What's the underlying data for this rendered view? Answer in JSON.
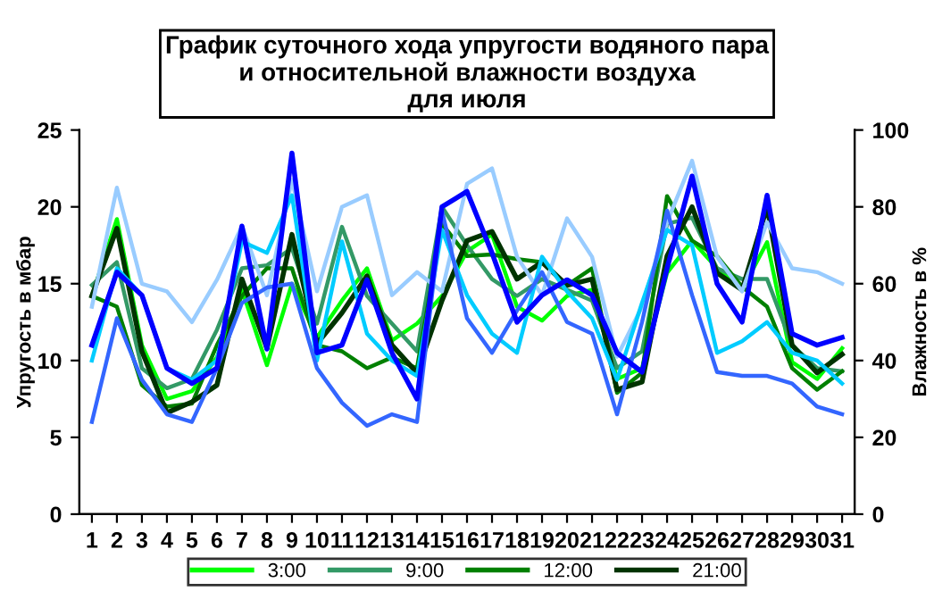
{
  "chart_data": {
    "type": "line",
    "title": "График суточного хода упругости водяного пара\nи относительной влажности воздуха\nдля июля",
    "ylabel": "Упругость в мбар",
    "y2label": "Влажность в %",
    "categories": [
      "1",
      "2",
      "3",
      "4",
      "5",
      "6",
      "7",
      "8",
      "9",
      "10",
      "11",
      "12",
      "13",
      "14",
      "15",
      "16",
      "17",
      "18",
      "19",
      "20",
      "21",
      "22",
      "23",
      "24",
      "25",
      "26",
      "27",
      "28",
      "29",
      "30",
      "31"
    ],
    "ylim": [
      0,
      25
    ],
    "yticks": [
      0,
      5,
      10,
      15,
      20,
      25
    ],
    "y2lim": [
      0,
      100
    ],
    "y2ticks": [
      0,
      20,
      40,
      60,
      80,
      100
    ],
    "grid": false,
    "legend": "bottom",
    "marker": "none",
    "line_style": "solid",
    "series": [
      {
        "name": "3:00",
        "color": "#00ff00",
        "values": [
          14.2,
          19.2,
          11,
          7.5,
          8,
          10.2,
          14.6,
          9.7,
          15,
          11.5,
          13.9,
          16,
          11.3,
          12.4,
          14.2,
          17.1,
          18.2,
          13.5,
          12.6,
          14.2,
          14.6,
          8.8,
          9.5,
          15.7,
          17.8,
          16,
          14.6,
          17.7,
          9.9,
          8.8,
          10.8
        ]
      },
      {
        "name": "9:00",
        "color": "#339966",
        "values": [
          14.9,
          16.4,
          9.5,
          8.2,
          8.8,
          12,
          16,
          16.2,
          17.3,
          12.4,
          18.7,
          14.2,
          12.4,
          10.6,
          20,
          17.5,
          15.3,
          14.2,
          15.3,
          14.6,
          13.9,
          9.5,
          10.6,
          18.9,
          19.3,
          16,
          15.3,
          15.3,
          11,
          9.5,
          9.3
        ]
      },
      {
        "name": "12:00",
        "color": "#008000",
        "values": [
          14.2,
          13.5,
          8.4,
          7,
          7.2,
          11,
          14.2,
          16,
          16,
          11,
          10.6,
          9.5,
          10.2,
          9.5,
          18.9,
          16.8,
          16.9,
          16.6,
          16.4,
          14.9,
          16,
          7.9,
          9.2,
          20.7,
          17.8,
          16.8,
          14.8,
          13.5,
          9.5,
          8.1,
          9.3
        ]
      },
      {
        "name": "21:00",
        "color": "#003300",
        "values": [
          14.2,
          18.6,
          10.6,
          6.6,
          7.3,
          8.4,
          15.3,
          10.8,
          18.2,
          11.1,
          13.1,
          15.5,
          11,
          9.2,
          13.9,
          17.8,
          18.4,
          15.3,
          16.4,
          14.9,
          15.3,
          8.1,
          8.6,
          16.8,
          20,
          15.7,
          14.6,
          20,
          11,
          9.2,
          10.4
        ]
      },
      {
        "axis": "y2",
        "color": "#99ccff",
        "values": [
          54,
          85,
          60,
          58,
          50,
          61,
          75,
          57,
          87,
          58,
          80,
          83,
          57,
          63,
          58,
          86,
          90,
          67,
          57,
          77,
          67,
          41,
          54,
          76,
          92,
          67,
          58,
          76,
          64,
          63,
          60
        ]
      },
      {
        "axis": "y2",
        "color": "#00ccff",
        "values": [
          40,
          64,
          57,
          38,
          35,
          40,
          71,
          68,
          83,
          40,
          71,
          47,
          40,
          36,
          74,
          57,
          47,
          42,
          67,
          58,
          51,
          35,
          55,
          74,
          70,
          42,
          45,
          50,
          42,
          40,
          34
        ]
      },
      {
        "axis": "y2",
        "color": "#3366ff",
        "values": [
          24,
          51,
          35,
          26,
          24,
          38,
          55,
          59,
          60,
          38,
          29,
          23,
          26,
          24,
          79,
          51,
          42,
          53,
          63,
          50,
          47,
          26,
          50,
          79,
          57,
          37,
          36,
          36,
          34,
          28,
          26
        ]
      },
      {
        "axis": "y2",
        "color": "#0000ff",
        "values": [
          44,
          63,
          57,
          38,
          34,
          38,
          75,
          43,
          94,
          42,
          44,
          61,
          42,
          30,
          80,
          84,
          68,
          50,
          57,
          61,
          57,
          42,
          37,
          64,
          88,
          60,
          50,
          83,
          47,
          44,
          46
        ]
      }
    ]
  }
}
